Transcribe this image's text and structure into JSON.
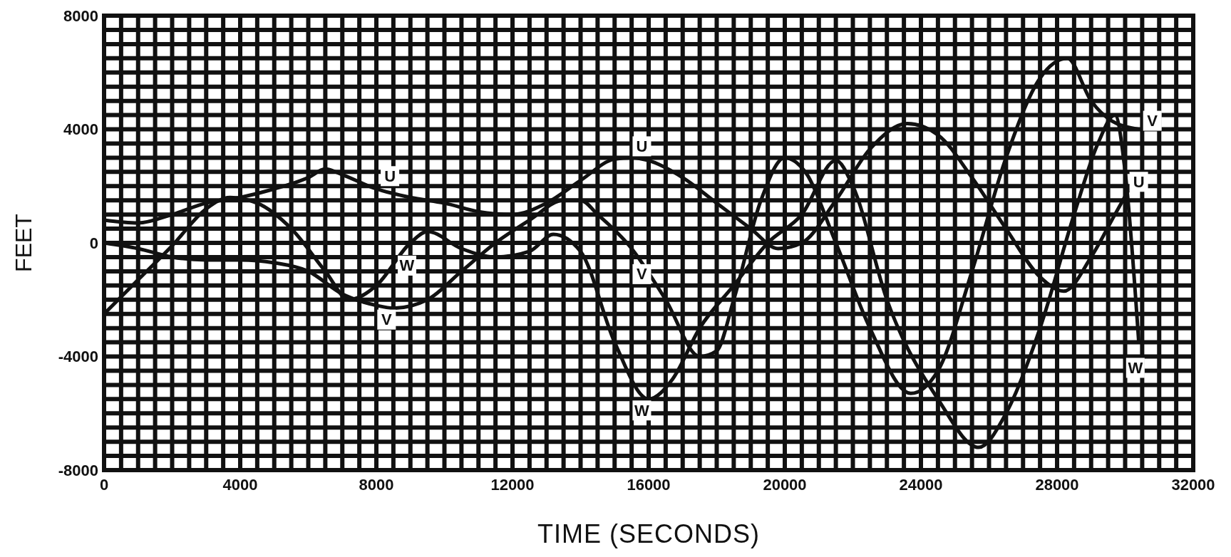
{
  "chart_data": {
    "type": "line",
    "xlabel": "TIME (SECONDS)",
    "ylabel": "FEET",
    "xlim": [
      0,
      32000
    ],
    "ylim": [
      -8000,
      8000
    ],
    "xticks": [
      0,
      {
        "value": 500,
        "label": null
      },
      {
        "value": 1000,
        "label": null
      },
      {
        "value": 1500,
        "label": null
      },
      {
        "value": 2000,
        "label": null
      },
      {
        "value": 2500,
        "label": null
      },
      {
        "value": 3000,
        "label": null
      },
      {
        "value": 3500,
        "label": null
      },
      4000,
      {
        "value": 4500,
        "label": null
      },
      {
        "value": 5000,
        "label": null
      },
      {
        "value": 5500,
        "label": null
      },
      {
        "value": 6000,
        "label": null
      },
      {
        "value": 6500,
        "label": null
      },
      {
        "value": 7000,
        "label": null
      },
      {
        "value": 7500,
        "label": null
      },
      8000,
      {
        "value": 8500,
        "label": null
      },
      {
        "value": 9000,
        "label": null
      },
      {
        "value": 9500,
        "label": null
      },
      {
        "value": 10000,
        "label": null
      },
      {
        "value": 10500,
        "label": null
      },
      {
        "value": 11000,
        "label": null
      },
      {
        "value": 11500,
        "label": null
      },
      12000,
      {
        "value": 12500,
        "label": null
      },
      {
        "value": 13000,
        "label": null
      },
      {
        "value": 13500,
        "label": null
      },
      {
        "value": 14000,
        "label": null
      },
      {
        "value": 14500,
        "label": null
      },
      {
        "value": 15000,
        "label": null
      },
      {
        "value": 15500,
        "label": null
      },
      16000,
      {
        "value": 16500,
        "label": null
      },
      {
        "value": 17000,
        "label": null
      },
      {
        "value": 17500,
        "label": null
      },
      {
        "value": 18000,
        "label": null
      },
      {
        "value": 18500,
        "label": null
      },
      {
        "value": 19000,
        "label": null
      },
      {
        "value": 19500,
        "label": null
      },
      20000,
      {
        "value": 20500,
        "label": null
      },
      {
        "value": 21000,
        "label": null
      },
      {
        "value": 21500,
        "label": null
      },
      {
        "value": 22000,
        "label": null
      },
      {
        "value": 22500,
        "label": null
      },
      {
        "value": 23000,
        "label": null
      },
      {
        "value": 23500,
        "label": null
      },
      24000,
      {
        "value": 24500,
        "label": null
      },
      {
        "value": 25000,
        "label": null
      },
      {
        "value": 25500,
        "label": null
      },
      {
        "value": 26000,
        "label": null
      },
      {
        "value": 26500,
        "label": null
      },
      {
        "value": 27000,
        "label": null
      },
      {
        "value": 27500,
        "label": null
      },
      28000,
      {
        "value": 28500,
        "label": null
      },
      {
        "value": 29000,
        "label": null
      },
      {
        "value": 29500,
        "label": null
      },
      {
        "value": 30000,
        "label": null
      },
      {
        "value": 30500,
        "label": null
      },
      {
        "value": 31000,
        "label": null
      },
      {
        "value": 31500,
        "label": null
      },
      32000
    ],
    "yticks": [
      -8000,
      {
        "value": -7500,
        "label": null
      },
      {
        "value": -7000,
        "label": null
      },
      {
        "value": -6500,
        "label": null
      },
      {
        "value": -6000,
        "label": null
      },
      {
        "value": -5500,
        "label": null
      },
      {
        "value": -5000,
        "label": null
      },
      {
        "value": -4500,
        "label": null
      },
      -4000,
      {
        "value": -3500,
        "label": null
      },
      {
        "value": -3000,
        "label": null
      },
      {
        "value": -2500,
        "label": null
      },
      {
        "value": -2000,
        "label": null
      },
      {
        "value": -1500,
        "label": null
      },
      {
        "value": -1000,
        "label": null
      },
      {
        "value": -500,
        "label": null
      },
      0,
      {
        "value": 500,
        "label": null
      },
      {
        "value": 1000,
        "label": null
      },
      {
        "value": 1500,
        "label": null
      },
      {
        "value": 2000,
        "label": null
      },
      {
        "value": 2500,
        "label": null
      },
      {
        "value": 3000,
        "label": null
      },
      {
        "value": 3500,
        "label": null
      },
      4000,
      {
        "value": 4500,
        "label": null
      },
      {
        "value": 5000,
        "label": null
      },
      {
        "value": 5500,
        "label": null
      },
      {
        "value": 6000,
        "label": null
      },
      {
        "value": 6500,
        "label": null
      },
      {
        "value": 7000,
        "label": null
      },
      {
        "value": 7500,
        "label": null
      },
      8000
    ],
    "grid": true,
    "series": [
      {
        "color": "#111111",
        "x": [
          0,
          1000,
          2000,
          3000,
          4000,
          5000,
          6000,
          6500,
          7000,
          8000,
          9000,
          10000,
          11000,
          12000,
          13000,
          14000,
          15000,
          15500,
          16000,
          17000,
          18000,
          19000,
          19800,
          20500,
          21500,
          22500,
          23600,
          24500,
          25500,
          26500,
          27500,
          28200,
          29000,
          29700,
          30400
        ],
        "values": [
          800,
          700,
          1000,
          1400,
          1600,
          1900,
          2300,
          2600,
          2400,
          1900,
          1600,
          1400,
          1100,
          1000,
          1400,
          2200,
          2950,
          3000,
          2900,
          2300,
          1400,
          500,
          -200,
          0,
          1500,
          3300,
          4200,
          3800,
          2300,
          500,
          -1200,
          -1700,
          -500,
          1000,
          2500
        ]
      },
      {
        "color": "#111111",
        "x": [
          0,
          1000,
          2000,
          3000,
          4000,
          5000,
          6000,
          7000,
          8000,
          8500,
          9500,
          10500,
          11500,
          12500,
          13500,
          14000,
          14500,
          15500,
          16500,
          17500,
          18000,
          18500,
          19300,
          20000,
          20600,
          21500,
          22500,
          23700,
          24500,
          25500,
          26500,
          27500,
          28300,
          29000,
          29600,
          30400
        ],
        "values": [
          0,
          -200,
          -500,
          -600,
          -600,
          -700,
          -1000,
          -1800,
          -2200,
          -2300,
          -2000,
          -1000,
          0,
          800,
          1500,
          1500,
          1000,
          -200,
          -2000,
          -4000,
          -3800,
          -2000,
          1500,
          3000,
          2500,
          0,
          -3000,
          -5300,
          -4500,
          -1000,
          3000,
          5800,
          6500,
          5000,
          4300,
          4000
        ]
      },
      {
        "color": "#111111",
        "x": [
          0,
          1000,
          2000,
          3000,
          3700,
          4500,
          5500,
          6500,
          7200,
          8000,
          9000,
          9500,
          10500,
          11500,
          12500,
          13200,
          14000,
          15000,
          16000,
          16700,
          17500,
          18500,
          19500,
          20500,
          21500,
          22000,
          23000,
          24500,
          25700,
          26500,
          27500,
          28500,
          29200,
          29700,
          30000,
          30400
        ],
        "values": [
          -2500,
          -1300,
          -100,
          1200,
          1600,
          1400,
          500,
          -1000,
          -2000,
          -1500,
          0,
          400,
          -200,
          -500,
          -300,
          300,
          -300,
          -3500,
          -5500,
          -4800,
          -3000,
          -1500,
          0,
          1000,
          2900,
          2000,
          -2000,
          -5500,
          -7200,
          -6000,
          -3000,
          1000,
          3500,
          4500,
          2500,
          -3500
        ]
      }
    ],
    "annotations": [
      {
        "text": "U",
        "x": 8400,
        "y": 2350
      },
      {
        "text": "U",
        "x": 15800,
        "y": 3400
      },
      {
        "text": "U",
        "x": 30400,
        "y": 2150
      },
      {
        "text": "W",
        "x": 8900,
        "y": -800
      },
      {
        "text": "W",
        "x": 15800,
        "y": -5900
      },
      {
        "text": "W",
        "x": 30300,
        "y": -4400
      },
      {
        "text": "V",
        "x": 8300,
        "y": -2700
      },
      {
        "text": "V",
        "x": 15800,
        "y": -1100
      },
      {
        "text": "V",
        "x": 30800,
        "y": 4300
      }
    ]
  }
}
